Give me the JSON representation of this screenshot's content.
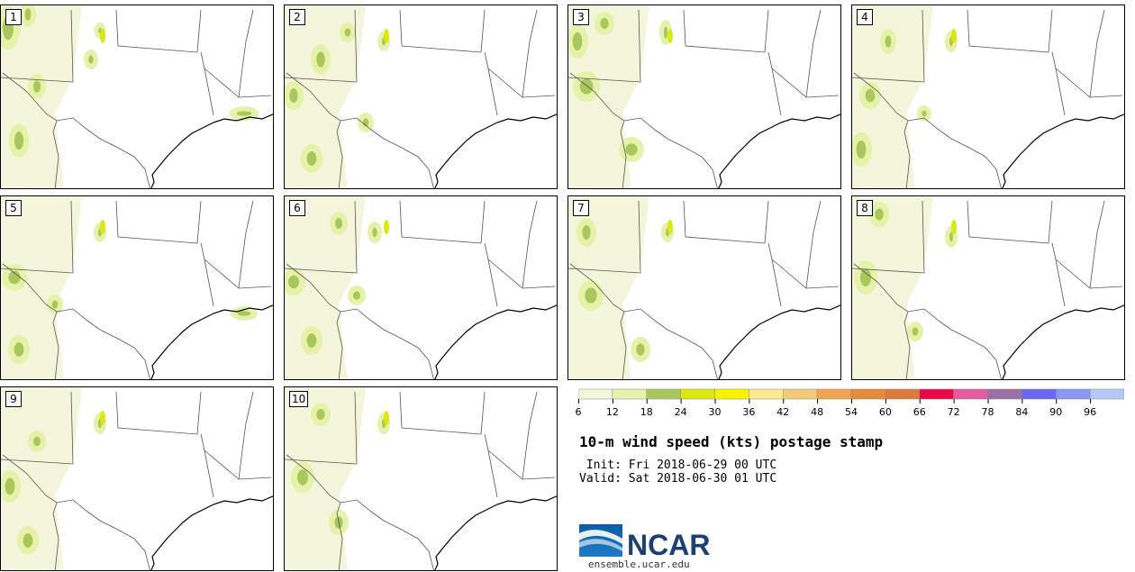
{
  "title": "10-m wind speed (kts) postage stamp",
  "init_line": " Init: Fri 2018-06-29 00 UTC",
  "valid_line": "Valid: Sat 2018-06-30 01 UTC",
  "logo_text": "NCAR",
  "logo_url": "ensemble.ucar.edu",
  "members": [
    "1",
    "2",
    "3",
    "4",
    "5",
    "6",
    "7",
    "8",
    "9",
    "10"
  ],
  "colorbar": {
    "ticks": [
      "6",
      "12",
      "18",
      "24",
      "30",
      "36",
      "42",
      "48",
      "54",
      "60",
      "66",
      "72",
      "78",
      "84",
      "90",
      "96"
    ],
    "colors": [
      "#f4f6dc",
      "#e6f1a9",
      "#a8c75c",
      "#dbe80e",
      "#fbf200",
      "#fde98d",
      "#f4cb7a",
      "#eea653",
      "#e88b39",
      "#dc7a3d",
      "#eb0748",
      "#e75aa1",
      "#9870a5",
      "#6a68f0",
      "#8a98f5",
      "#b6c8f5"
    ]
  }
}
